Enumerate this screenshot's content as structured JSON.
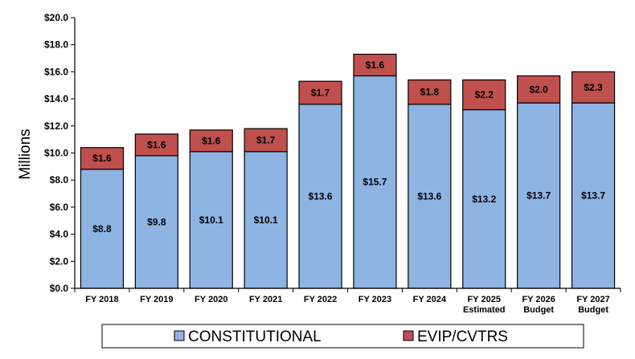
{
  "chart_data": {
    "type": "bar",
    "stacked": true,
    "title": "",
    "xlabel": "",
    "ylabel": "Millions",
    "ylim": [
      0,
      20
    ],
    "ytick_step": 2,
    "ytick_labels": [
      "$0.0",
      "$2.0",
      "$4.0",
      "$6.0",
      "$8.0",
      "$10.0",
      "$12.0",
      "$14.0",
      "$16.0",
      "$18.0",
      "$20.0"
    ],
    "categories": [
      [
        "FY 2018"
      ],
      [
        "FY 2019"
      ],
      [
        "FY 2020"
      ],
      [
        "FY 2021"
      ],
      [
        "FY 2022"
      ],
      [
        "FY 2023"
      ],
      [
        "FY 2024"
      ],
      [
        "FY 2025",
        "Estimated"
      ],
      [
        "FY 2026",
        "Budget"
      ],
      [
        "FY 2027",
        "Budget"
      ]
    ],
    "series": [
      {
        "name": "CONSTITUTIONAL",
        "color": "#8EB4E3",
        "values": [
          8.8,
          9.8,
          10.1,
          10.1,
          13.6,
          15.7,
          13.6,
          13.2,
          13.7,
          13.7
        ],
        "labels": [
          "$8.8",
          "$9.8",
          "$10.1",
          "$10.1",
          "$13.6",
          "$15.7",
          "$13.6",
          "$13.2",
          "$13.7",
          "$13.7"
        ]
      },
      {
        "name": "EVIP/CVTRS",
        "color": "#C0504D",
        "values": [
          1.6,
          1.6,
          1.6,
          1.7,
          1.7,
          1.6,
          1.8,
          2.2,
          2.0,
          2.3
        ],
        "labels": [
          "$1.6",
          "$1.6",
          "$1.6",
          "$1.7",
          "$1.7",
          "$1.6",
          "$1.8",
          "$2.2",
          "$2.0",
          "$2.3"
        ]
      }
    ],
    "grid": false,
    "legend": "bottom"
  }
}
